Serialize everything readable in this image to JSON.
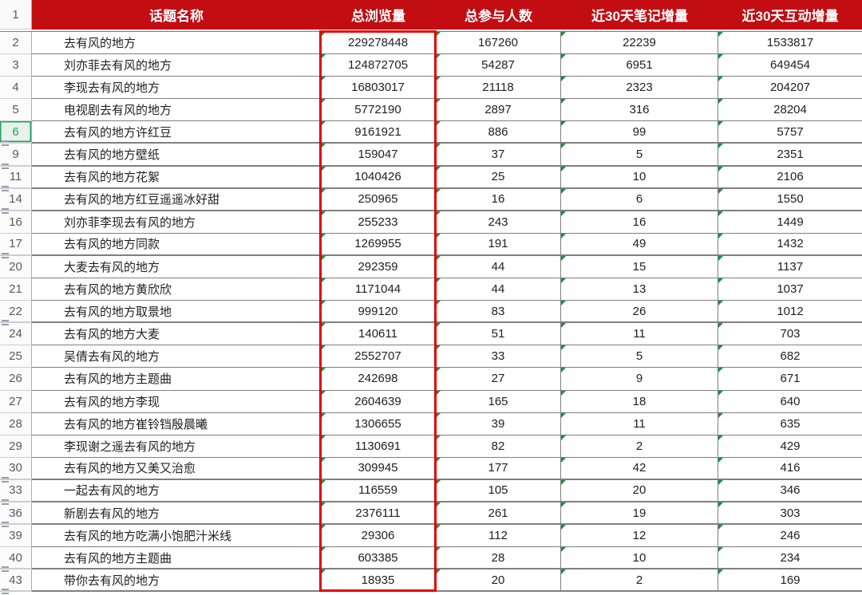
{
  "table": {
    "corner_row_number": "1",
    "columns": [
      {
        "label": "话题名称"
      },
      {
        "label": "总浏览量"
      },
      {
        "label": "总参与人数"
      },
      {
        "label": "近30天笔记增量"
      },
      {
        "label": "近30天互动增量"
      }
    ],
    "rows": [
      {
        "row_number": "2",
        "name": "去有风的地方",
        "views": "229278448",
        "participants": "167260",
        "notes_30d": "22239",
        "interactions_30d": "1533817",
        "selected": false,
        "gap_after": false
      },
      {
        "row_number": "3",
        "name": "刘亦菲去有风的地方",
        "views": "124872705",
        "participants": "54287",
        "notes_30d": "6951",
        "interactions_30d": "649454",
        "selected": false,
        "gap_after": false
      },
      {
        "row_number": "4",
        "name": "李现去有风的地方",
        "views": "16803017",
        "participants": "21118",
        "notes_30d": "2323",
        "interactions_30d": "204207",
        "selected": false,
        "gap_after": false
      },
      {
        "row_number": "5",
        "name": "电视剧去有风的地方",
        "views": "5772190",
        "participants": "2897",
        "notes_30d": "316",
        "interactions_30d": "28204",
        "selected": false,
        "gap_after": false
      },
      {
        "row_number": "6",
        "name": "去有风的地方许红豆",
        "views": "9161921",
        "participants": "886",
        "notes_30d": "99",
        "interactions_30d": "5757",
        "selected": true,
        "gap_after": true
      },
      {
        "row_number": "9",
        "name": "去有风的地方壁纸",
        "views": "159047",
        "participants": "37",
        "notes_30d": "5",
        "interactions_30d": "2351",
        "selected": false,
        "gap_after": true
      },
      {
        "row_number": "11",
        "name": "去有风的地方花絮",
        "views": "1040426",
        "participants": "25",
        "notes_30d": "10",
        "interactions_30d": "2106",
        "selected": false,
        "gap_after": true
      },
      {
        "row_number": "14",
        "name": "去有风的地方红豆遥遥冰好甜",
        "views": "250965",
        "participants": "16",
        "notes_30d": "6",
        "interactions_30d": "1550",
        "selected": false,
        "gap_after": true
      },
      {
        "row_number": "16",
        "name": "刘亦菲李现去有风的地方",
        "views": "255233",
        "participants": "243",
        "notes_30d": "16",
        "interactions_30d": "1449",
        "selected": false,
        "gap_after": false
      },
      {
        "row_number": "17",
        "name": "去有风的地方同款",
        "views": "1269955",
        "participants": "191",
        "notes_30d": "49",
        "interactions_30d": "1432",
        "selected": false,
        "gap_after": true
      },
      {
        "row_number": "20",
        "name": "大麦去有风的地方",
        "views": "292359",
        "participants": "44",
        "notes_30d": "15",
        "interactions_30d": "1137",
        "selected": false,
        "gap_after": false
      },
      {
        "row_number": "21",
        "name": "去有风的地方黄欣欣",
        "views": "1171044",
        "participants": "44",
        "notes_30d": "13",
        "interactions_30d": "1037",
        "selected": false,
        "gap_after": false
      },
      {
        "row_number": "22",
        "name": "去有风的地方取景地",
        "views": "999120",
        "participants": "83",
        "notes_30d": "26",
        "interactions_30d": "1012",
        "selected": false,
        "gap_after": true
      },
      {
        "row_number": "24",
        "name": "去有风的地方大麦",
        "views": "140611",
        "participants": "51",
        "notes_30d": "11",
        "interactions_30d": "703",
        "selected": false,
        "gap_after": false
      },
      {
        "row_number": "25",
        "name": "吴倩去有风的地方",
        "views": "2552707",
        "participants": "33",
        "notes_30d": "5",
        "interactions_30d": "682",
        "selected": false,
        "gap_after": false
      },
      {
        "row_number": "26",
        "name": "去有风的地方主题曲",
        "views": "242698",
        "participants": "27",
        "notes_30d": "9",
        "interactions_30d": "671",
        "selected": false,
        "gap_after": false
      },
      {
        "row_number": "27",
        "name": "去有风的地方李现",
        "views": "2604639",
        "participants": "165",
        "notes_30d": "18",
        "interactions_30d": "640",
        "selected": false,
        "gap_after": false
      },
      {
        "row_number": "28",
        "name": "去有风的地方崔铃铛殷晨曦",
        "views": "1306655",
        "participants": "39",
        "notes_30d": "11",
        "interactions_30d": "635",
        "selected": false,
        "gap_after": false
      },
      {
        "row_number": "29",
        "name": "李现谢之遥去有风的地方",
        "views": "1130691",
        "participants": "82",
        "notes_30d": "2",
        "interactions_30d": "429",
        "selected": false,
        "gap_after": false
      },
      {
        "row_number": "30",
        "name": "去有风的地方又美又治愈",
        "views": "309945",
        "participants": "177",
        "notes_30d": "42",
        "interactions_30d": "416",
        "selected": false,
        "gap_after": true
      },
      {
        "row_number": "33",
        "name": "一起去有风的地方",
        "views": "116559",
        "participants": "105",
        "notes_30d": "20",
        "interactions_30d": "346",
        "selected": false,
        "gap_after": true
      },
      {
        "row_number": "36",
        "name": "新剧去有风的地方",
        "views": "2376111",
        "participants": "261",
        "notes_30d": "19",
        "interactions_30d": "303",
        "selected": false,
        "gap_after": true
      },
      {
        "row_number": "39",
        "name": "去有风的地方吃满小饱肥汁米线",
        "views": "29306",
        "participants": "112",
        "notes_30d": "12",
        "interactions_30d": "246",
        "selected": false,
        "gap_after": false
      },
      {
        "row_number": "40",
        "name": "去有风的地方主题曲",
        "views": "603385",
        "participants": "28",
        "notes_30d": "10",
        "interactions_30d": "234",
        "selected": false,
        "gap_after": true
      },
      {
        "row_number": "43",
        "name": "带你去有风的地方",
        "views": "18935",
        "participants": "20",
        "notes_30d": "2",
        "interactions_30d": "169",
        "selected": false,
        "gap_after": true
      }
    ]
  },
  "colors": {
    "header_bg": "#c20d12",
    "header_text": "#ffffff",
    "highlight_border": "#e60000",
    "text_marker_green": "#1e8e3e",
    "selected_row_green": "#21a366",
    "grid_line": "#7f7f7f"
  }
}
